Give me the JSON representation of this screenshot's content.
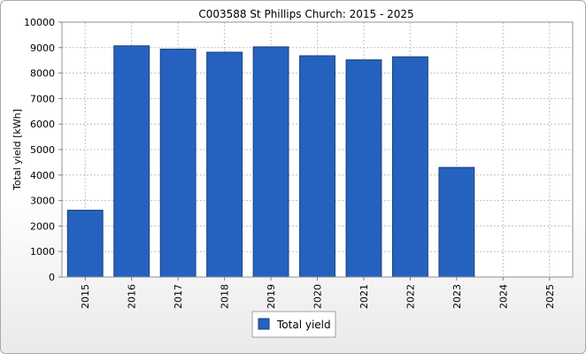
{
  "chart_data": {
    "type": "bar",
    "title": "C003588 St Phillips Church: 2015 - 2025",
    "xlabel": "",
    "ylabel": "Total yield [kWh]",
    "categories": [
      "2015",
      "2016",
      "2017",
      "2018",
      "2019",
      "2020",
      "2021",
      "2022",
      "2023",
      "2024",
      "2025"
    ],
    "series": [
      {
        "name": "Total yield",
        "values": [
          2620,
          9070,
          8940,
          8820,
          9030,
          8680,
          8520,
          8640,
          4300,
          null,
          null
        ],
        "color": "#2562c0"
      }
    ],
    "ylim": [
      0,
      10000
    ],
    "yticks": [
      0,
      1000,
      2000,
      3000,
      4000,
      5000,
      6000,
      7000,
      8000,
      9000,
      10000
    ],
    "grid": true,
    "legend_position": "bottom-center",
    "colors": {
      "bar_fill": "#2562c0",
      "bar_stroke": "#1a3f7a",
      "grid": "#c0c0c0",
      "plot_bg": "#ffffff"
    }
  }
}
